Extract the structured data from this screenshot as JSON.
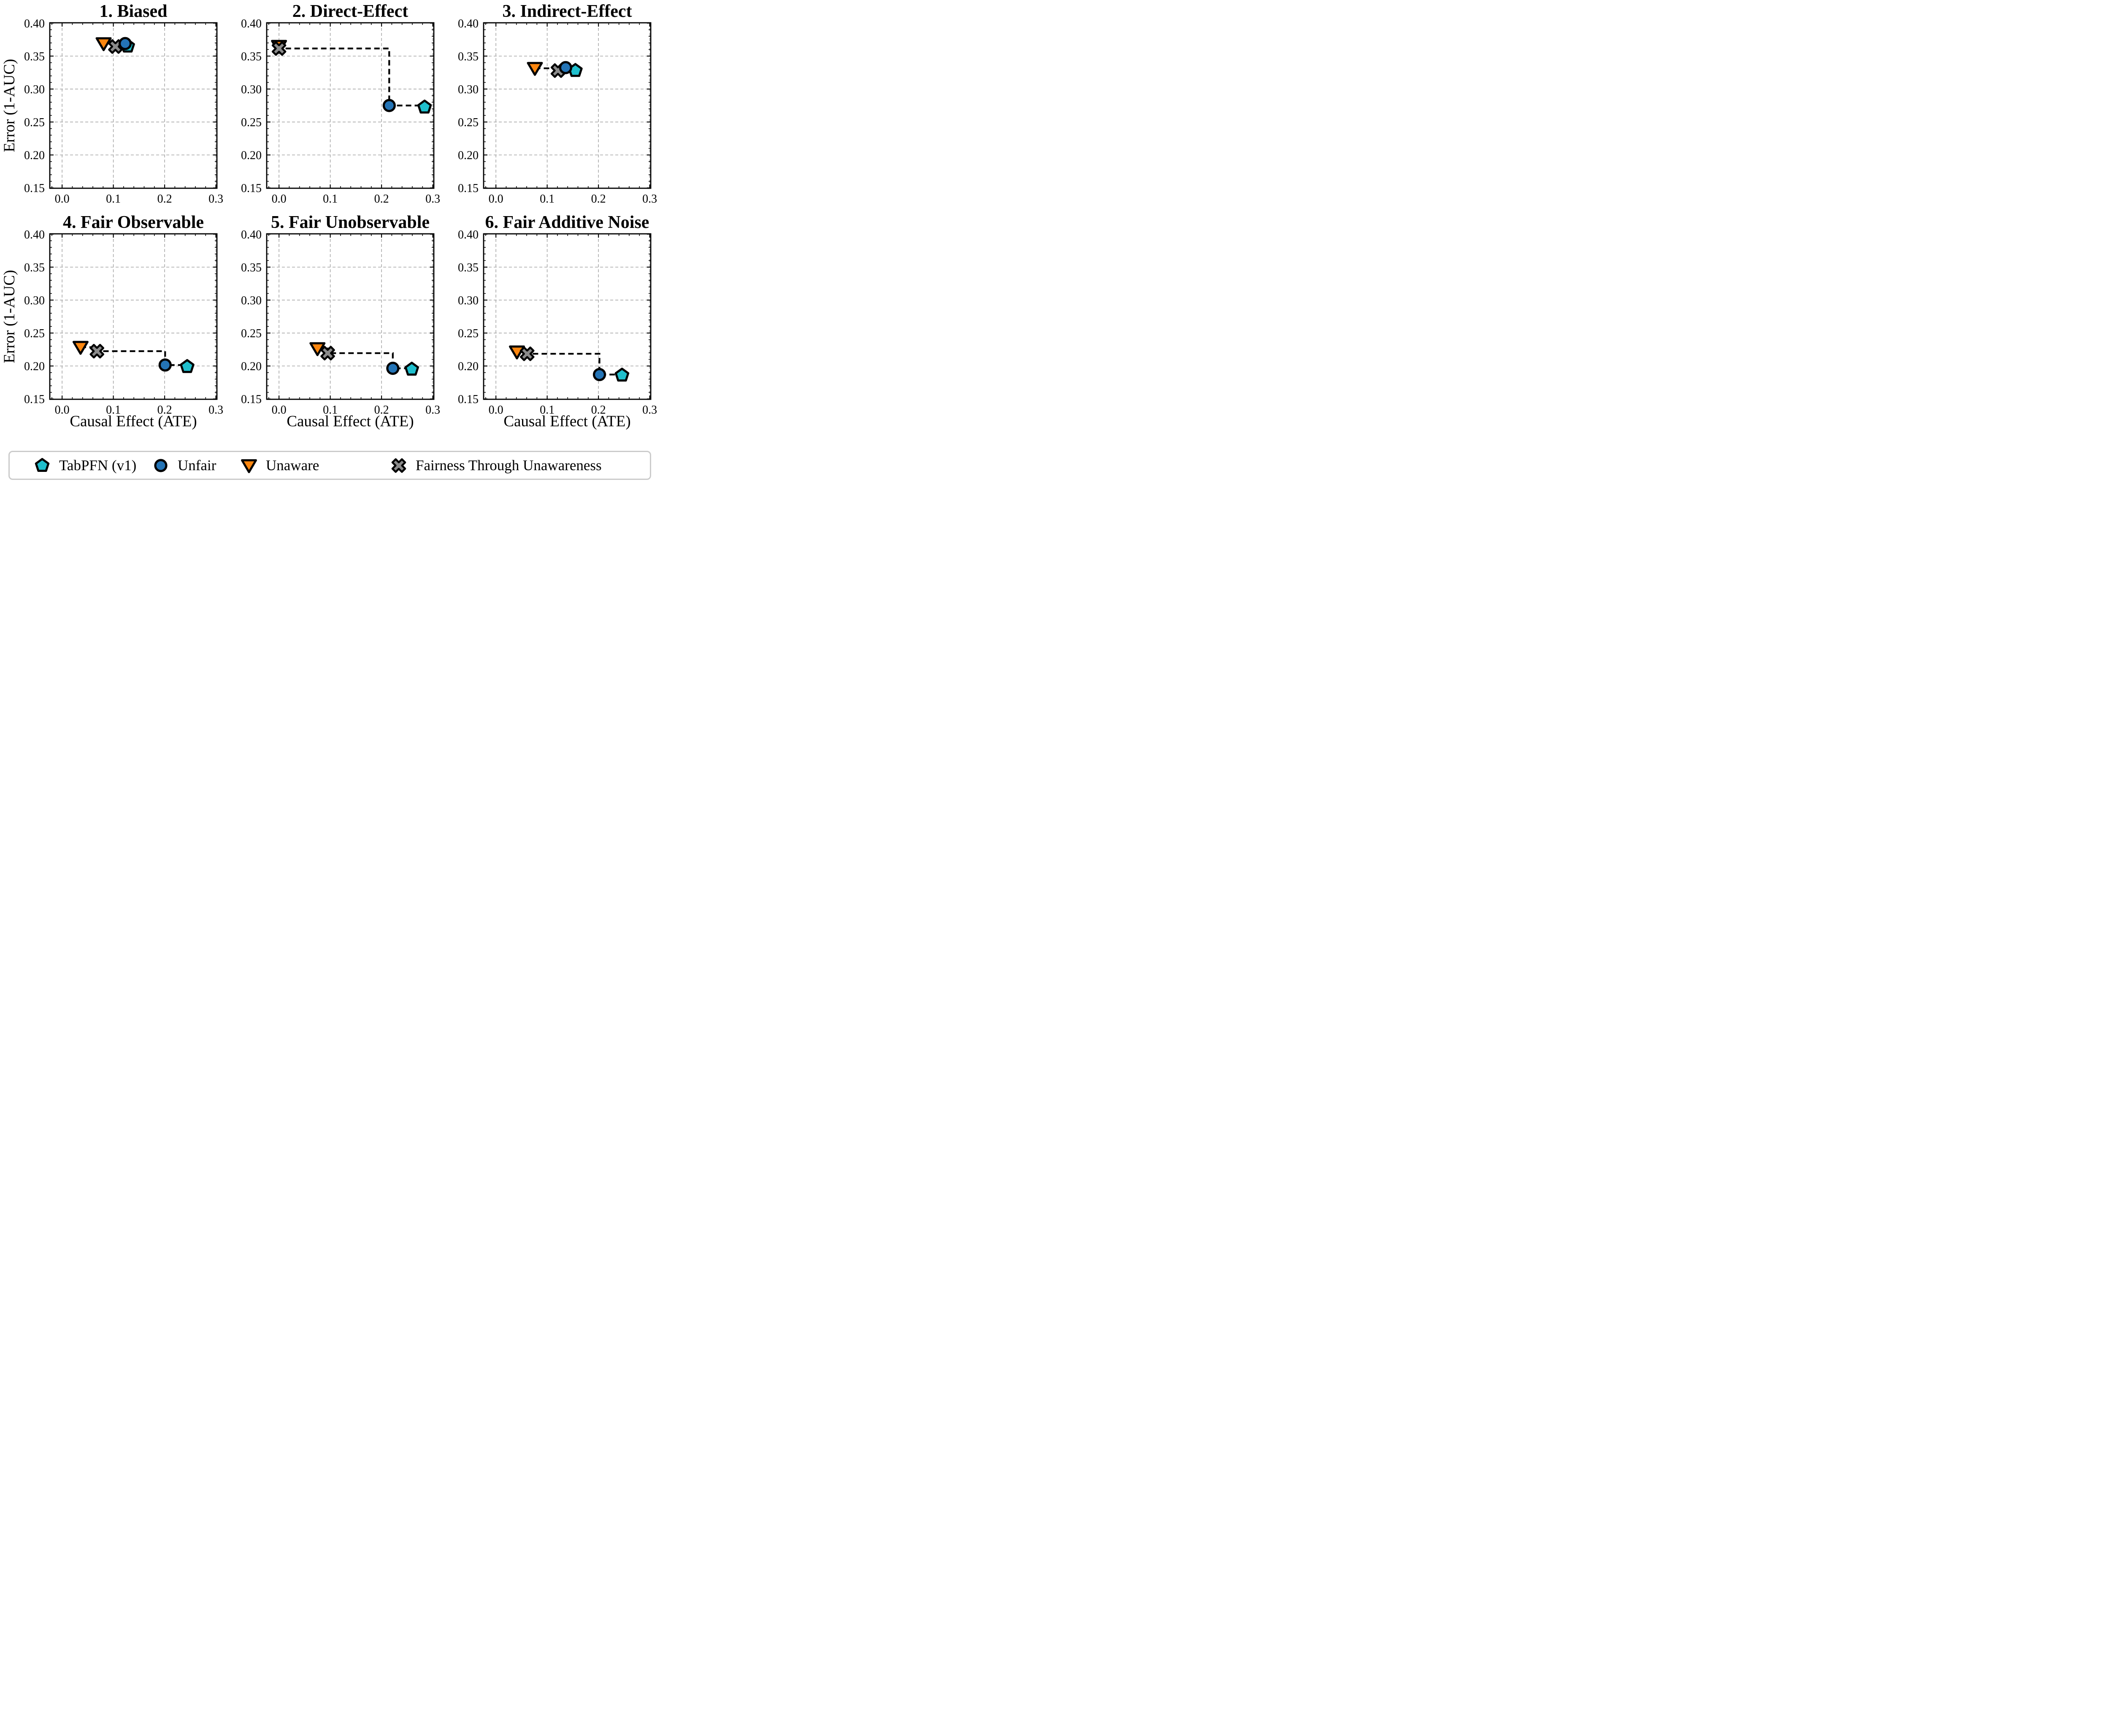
{
  "figure": {
    "background": "#ffffff",
    "text_color": "#000000",
    "grid_color": "#a8a8a8",
    "legend_border_color": "#cbcbcb"
  },
  "legend": {
    "entries": [
      {
        "label": "TabPFN (v1)",
        "marker": "pentagon",
        "color": "#1fbfcd"
      },
      {
        "label": "Unfair",
        "marker": "circle",
        "color": "#2474b6"
      },
      {
        "label": "Unaware",
        "marker": "triangle-down",
        "color": "#fc860f"
      },
      {
        "label": "Fairness Through Unawareness",
        "marker": "x",
        "color": "#8b8b8b"
      }
    ]
  },
  "chart_data": {
    "type": "scatter",
    "grid": true,
    "xlabel": "Causal Effect (ATE)",
    "ylabel": "Error (1-AUC)",
    "xlim": [
      -0.024,
      0.302
    ],
    "ylim": [
      0.1495,
      0.4005
    ],
    "xticks": [
      0.0,
      0.1,
      0.2,
      0.3
    ],
    "xtick_labels": [
      "0.0",
      "0.1",
      "0.2",
      "0.3"
    ],
    "yticks": [
      0.4,
      0.35,
      0.3,
      0.25,
      0.2,
      0.15
    ],
    "ytick_labels": [
      "0.40",
      "0.35",
      "0.30",
      "0.25",
      "0.20",
      "0.15"
    ],
    "x_minor_step": 0.02,
    "y_minor_step": 0.01,
    "legend_position": "bottom",
    "series_styles": [
      {
        "id": "tabpfn",
        "label": "TabPFN (v1)",
        "marker": "pentagon",
        "color": "#1fbfcd",
        "edge_color": "#000000"
      },
      {
        "id": "unfair",
        "label": "Unfair",
        "marker": "circle",
        "color": "#2474b6",
        "edge_color": "#000000"
      },
      {
        "id": "unaware",
        "label": "Unaware",
        "marker": "triangle-down",
        "color": "#fc860f",
        "edge_color": "#000000"
      },
      {
        "id": "ftu",
        "label": "Fairness Through Unawareness",
        "marker": "x",
        "color": "#8b8b8b",
        "edge_color": "#000000"
      }
    ],
    "connector": {
      "order": [
        "unaware",
        "ftu",
        "unfair",
        "tabpfn"
      ],
      "style": "dashed-step",
      "color": "#000000"
    },
    "draw_order": [
      "unaware",
      "ftu",
      "tabpfn",
      "unfair"
    ],
    "subplots": [
      {
        "title": "1. Biased",
        "points": {
          "tabpfn": [
            0.128,
            0.365
          ],
          "unfair": [
            0.123,
            0.369
          ],
          "unaware": [
            0.081,
            0.369
          ],
          "ftu": [
            0.104,
            0.3645
          ]
        }
      },
      {
        "title": "2. Direct-Effect",
        "points": {
          "tabpfn": [
            0.284,
            0.2725
          ],
          "unfair": [
            0.215,
            0.275
          ],
          "unaware": [
            0.0,
            0.365
          ],
          "ftu": [
            0.0,
            0.3615
          ]
        }
      },
      {
        "title": "3. Indirect-Effect",
        "points": {
          "tabpfn": [
            0.155,
            0.328
          ],
          "unfair": [
            0.136,
            0.3325
          ],
          "unaware": [
            0.076,
            0.3315
          ],
          "ftu": [
            0.121,
            0.328
          ]
        }
      },
      {
        "title": "4. Fair Observable",
        "points": {
          "tabpfn": [
            0.244,
            0.199
          ],
          "unfair": [
            0.201,
            0.2015
          ],
          "unaware": [
            0.036,
            0.2285
          ],
          "ftu": [
            0.068,
            0.2225
          ]
        }
      },
      {
        "title": "5. Fair Unobservable",
        "points": {
          "tabpfn": [
            0.259,
            0.195
          ],
          "unfair": [
            0.222,
            0.1965
          ],
          "unaware": [
            0.075,
            0.2265
          ],
          "ftu": [
            0.095,
            0.2195
          ]
        }
      },
      {
        "title": "6. Fair Additive Noise",
        "points": {
          "tabpfn": [
            0.246,
            0.186
          ],
          "unfair": [
            0.202,
            0.187
          ],
          "unaware": [
            0.041,
            0.2215
          ],
          "ftu": [
            0.061,
            0.2185
          ]
        }
      }
    ]
  }
}
